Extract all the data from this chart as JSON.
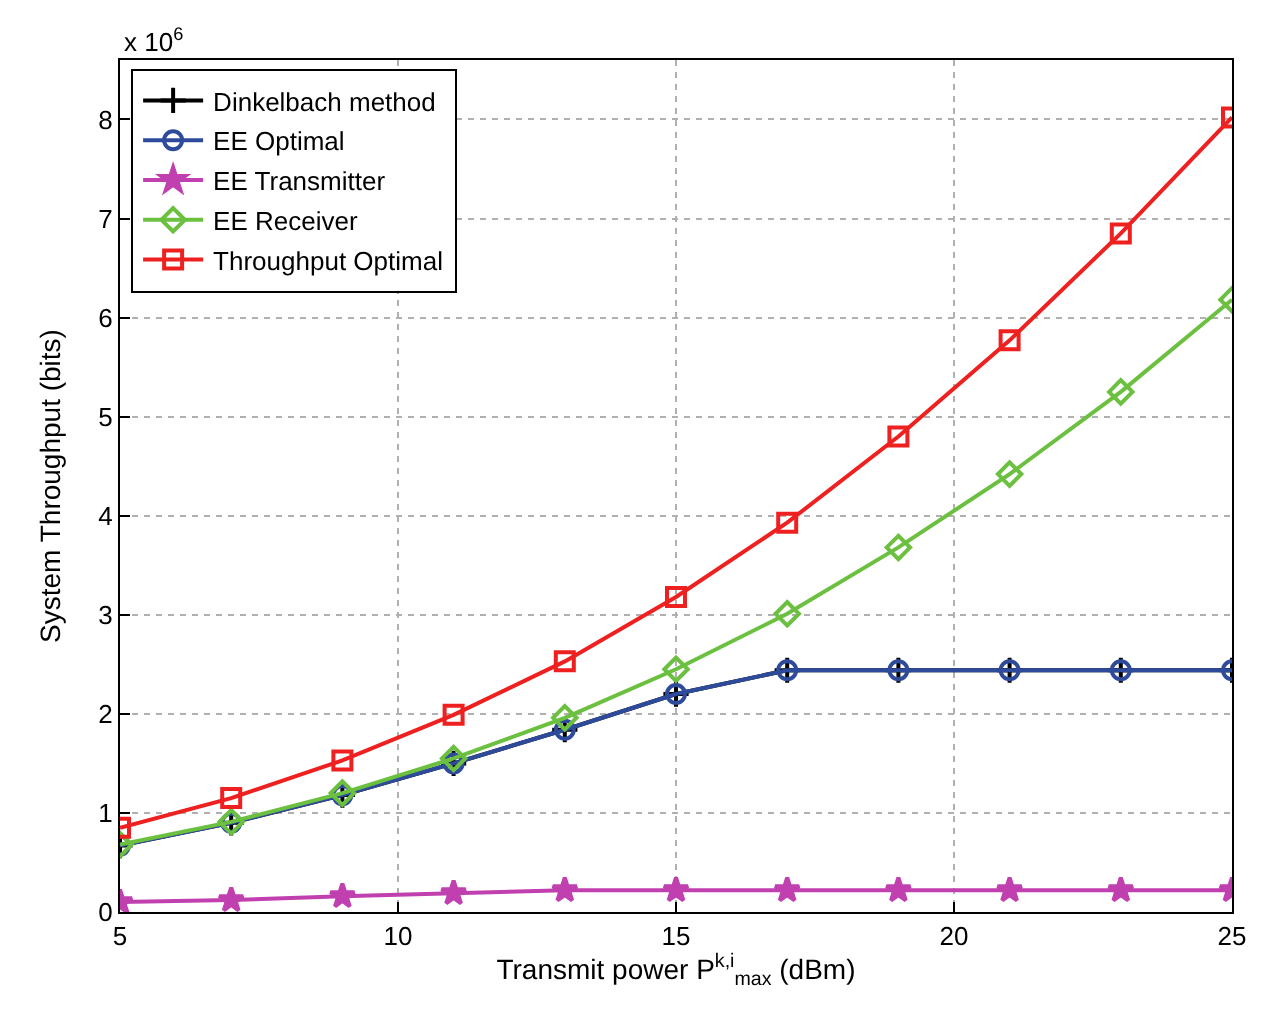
{
  "chart_data": {
    "type": "line",
    "xlabel": "Transmit power P$^{k,i}$$_{max}$ (dBm)",
    "ylabel": "System Throughput (bits)",
    "x": [
      5,
      7,
      9,
      11,
      13,
      15,
      17,
      19,
      21,
      23,
      25
    ],
    "xlim": [
      5,
      25
    ],
    "xticks": [
      5,
      10,
      15,
      20,
      25
    ],
    "ylim": [
      0,
      8.6
    ],
    "yticks": [
      0,
      1,
      2,
      3,
      4,
      5,
      6,
      7,
      8
    ],
    "annotations": [
      "x 10$^{6}$"
    ],
    "grid": true,
    "legend": "top left",
    "line_style": "solid",
    "series": [
      {
        "name": "Dinkelbach method",
        "color": "#000000",
        "marker": "cross",
        "values": [
          0.67,
          0.9,
          1.18,
          1.5,
          1.84,
          2.2,
          2.44,
          2.44,
          2.44,
          2.44,
          2.44
        ]
      },
      {
        "name": "EE Optimal",
        "color": "#2e4b9b",
        "marker": "circle",
        "values": [
          0.67,
          0.9,
          1.18,
          1.5,
          1.84,
          2.2,
          2.44,
          2.44,
          2.44,
          2.44,
          2.44
        ]
      },
      {
        "name": "EE Transmitter",
        "color": "#c040b0",
        "marker": "star",
        "values": [
          0.1,
          0.12,
          0.16,
          0.19,
          0.22,
          0.22,
          0.22,
          0.22,
          0.22,
          0.22,
          0.22
        ]
      },
      {
        "name": "EE Receiver",
        "color": "#6cc040",
        "marker": "diamond",
        "values": [
          0.68,
          0.91,
          1.2,
          1.55,
          1.96,
          2.45,
          3.01,
          3.68,
          4.42,
          5.25,
          6.18
        ]
      },
      {
        "name": "Throughput Optimal",
        "color": "#ee2020",
        "marker": "square",
        "values": [
          0.85,
          1.15,
          1.53,
          1.99,
          2.53,
          3.18,
          3.93,
          4.8,
          5.77,
          6.85,
          8.02
        ]
      }
    ]
  }
}
